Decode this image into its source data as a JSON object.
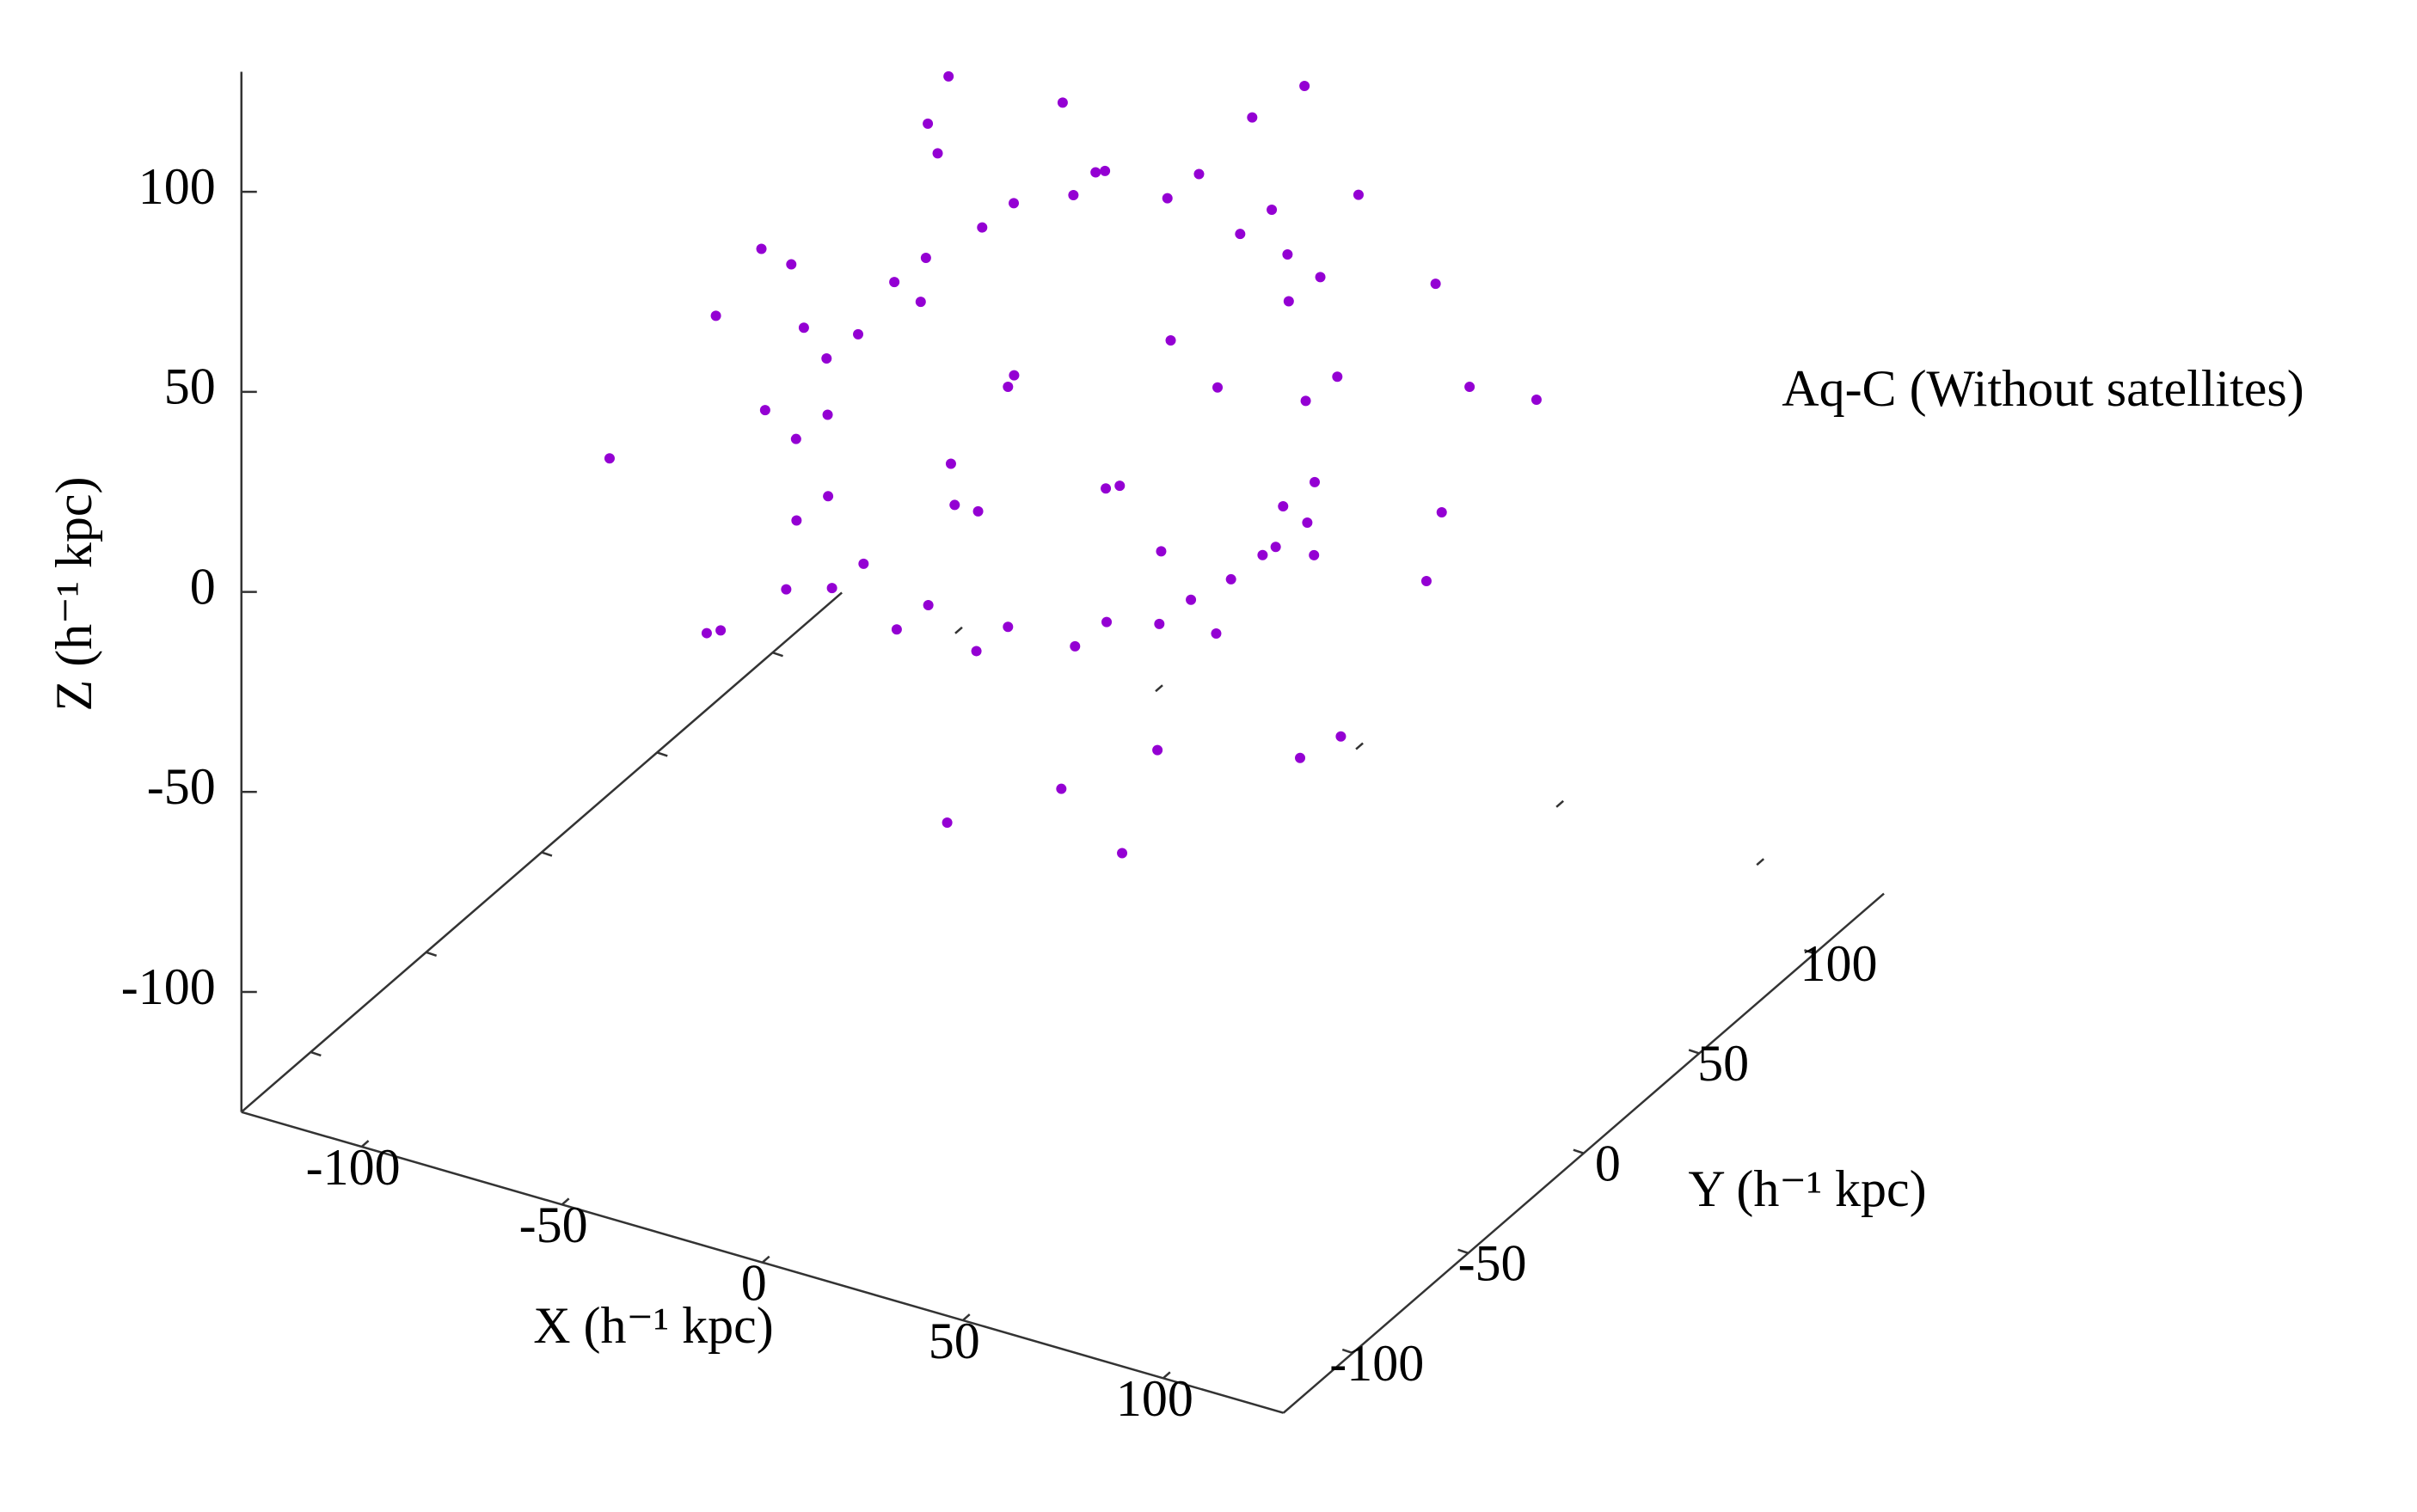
{
  "chart_data": {
    "type": "scatter3d",
    "annotation": "Aq-C (Without satellites)",
    "xlabel": "X (h⁻¹ kpc)",
    "ylabel": "Y (h⁻¹ kpc)",
    "zlabel": "Z (h⁻¹ kpc)",
    "xlim": [
      -130,
      130
    ],
    "ylim": [
      -130,
      130
    ],
    "zlim": [
      -130,
      130
    ],
    "xticks": [
      -100,
      -50,
      0,
      50,
      100
    ],
    "yticks": [
      -100,
      -50,
      0,
      50,
      100
    ],
    "zticks": [
      -100,
      -50,
      0,
      50,
      100
    ],
    "color": "#9400d3",
    "x": [
      55,
      52,
      42,
      27,
      10,
      -10,
      -27,
      -42,
      -52,
      -55,
      -52,
      -42,
      -27,
      -10,
      10,
      27,
      42,
      52,
      60,
      57,
      47,
      32,
      15,
      -5,
      -22,
      -37,
      -47,
      -50,
      -47,
      -37,
      -22,
      -5,
      15,
      32,
      47,
      57,
      70,
      -60,
      80,
      -75,
      20,
      -30,
      60,
      -50,
      40,
      -80,
      10,
      -20,
      85,
      30,
      -40,
      50,
      0,
      -60,
      65,
      -10,
      90,
      -85,
      25,
      -35,
      45,
      -55,
      70,
      -70,
      15,
      -25,
      0,
      55,
      -45,
      75,
      -90,
      35,
      20,
      -15,
      5,
      -5,
      30,
      -25
    ],
    "y": [
      0,
      15,
      25,
      30,
      28,
      22,
      12,
      0,
      -12,
      -20,
      -25,
      -27,
      -25,
      -20,
      -12,
      -5,
      0,
      2,
      5,
      20,
      30,
      35,
      33,
      27,
      17,
      5,
      -7,
      -15,
      -20,
      -22,
      -20,
      -15,
      -7,
      0,
      5,
      7,
      40,
      50,
      -30,
      -20,
      70,
      -60,
      60,
      40,
      -70,
      10,
      80,
      -85,
      10,
      30,
      20,
      -40,
      -50,
      -50,
      -10,
      60,
      20,
      30,
      -80,
      75,
      50,
      -35,
      -55,
      60,
      15,
      -15,
      0,
      25,
      -70,
      75,
      -40,
      -35,
      -10,
      5,
      10,
      -15,
      15,
      -5
    ],
    "z": [
      10,
      28,
      45,
      55,
      60,
      58,
      50,
      38,
      22,
      5,
      -12,
      -25,
      -32,
      -35,
      -32,
      -25,
      -12,
      -2,
      15,
      33,
      50,
      60,
      65,
      63,
      55,
      43,
      27,
      10,
      -7,
      -20,
      -27,
      -30,
      -27,
      -20,
      -7,
      3,
      50,
      40,
      20,
      30,
      70,
      60,
      -20,
      -40,
      -30,
      -10,
      20,
      10,
      -5,
      85,
      80,
      70,
      -60,
      -30,
      -45,
      -50,
      40,
      15,
      40,
      30,
      60,
      60,
      10,
      -5,
      -70,
      90,
      95,
      -60,
      -15,
      5,
      0,
      -65,
      10,
      20,
      -5,
      30,
      25,
      0
    ]
  }
}
